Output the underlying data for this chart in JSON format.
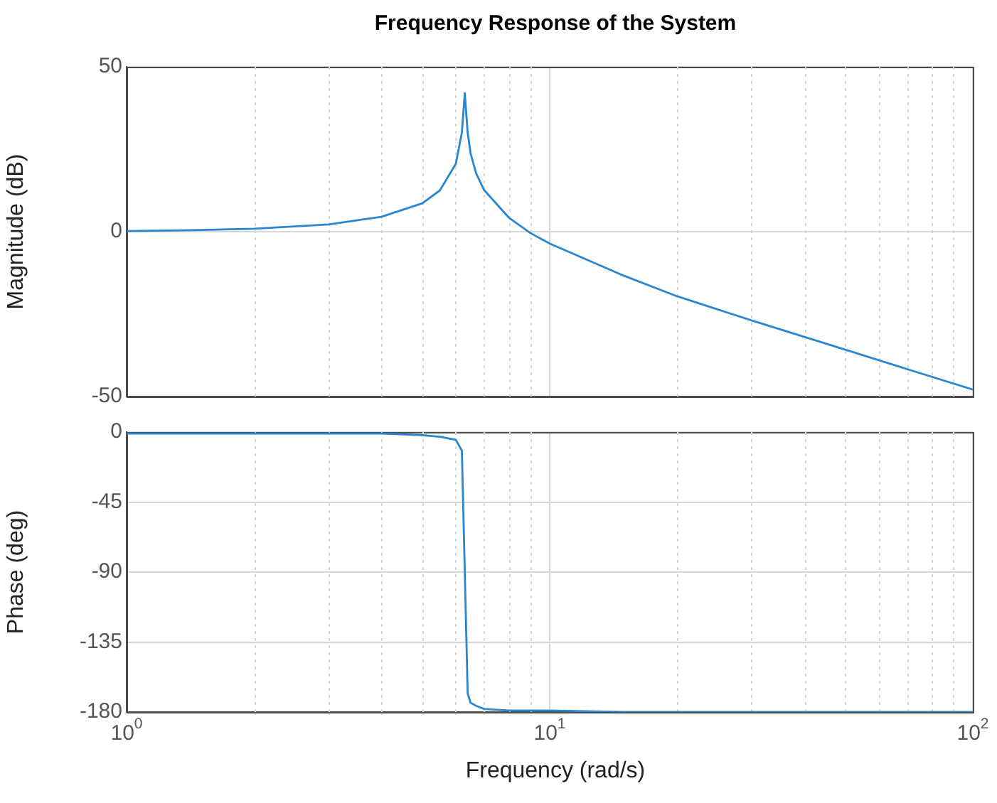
{
  "chart_data": [
    {
      "type": "line",
      "title": "Frequency Response of the System",
      "ylabel": "Magnitude (dB)",
      "log": "x",
      "grid": true,
      "tick_labels": "y",
      "marker": "none",
      "line_style": "solid",
      "xlim": [
        1,
        100
      ],
      "xticks": [
        1,
        10,
        100
      ],
      "ylim": [
        -50,
        50
      ],
      "yticks": [
        -50,
        0,
        50
      ],
      "x": [
        1,
        1.5,
        2,
        3,
        4,
        5,
        5.5,
        6,
        6.2,
        6.3,
        6.4,
        6.5,
        6.7,
        7,
        8,
        9,
        10,
        15,
        20,
        30,
        50,
        70,
        100
      ],
      "series": [
        {
          "color": "#2b86d1",
          "values": [
            0.2,
            0.5,
            0.9,
            2.2,
            4.5,
            8.6,
            12.5,
            20.6,
            30,
            42,
            30,
            23.8,
            17.7,
            12.6,
            4.3,
            -0.4,
            -3.6,
            -13.4,
            -19.6,
            -26.9,
            -35.8,
            -41.7,
            -47.9
          ]
        }
      ]
    },
    {
      "type": "line",
      "xlabel": "Frequency  (rad/s)",
      "ylabel": "Phase (deg)",
      "log": "x",
      "grid": true,
      "marker": "none",
      "line_style": "solid",
      "xlim": [
        1,
        100
      ],
      "xticks": [
        {
          "value": 1,
          "label": "10$^{0}$"
        },
        {
          "value": 10,
          "label": "10$^{1}$"
        },
        {
          "value": 100,
          "label": "10$^{2}$"
        }
      ],
      "ylim": [
        -180,
        0
      ],
      "yticks": [
        -180,
        -135,
        -90,
        -45,
        0
      ],
      "x": [
        1,
        1.5,
        2,
        3,
        4,
        5,
        5.5,
        6,
        6.2,
        6.3,
        6.4,
        6.5,
        6.7,
        7,
        8,
        9,
        10,
        15,
        20,
        30,
        50,
        70,
        100
      ],
      "series": [
        {
          "color": "#2b86d1",
          "values": [
            -1,
            -1,
            -1,
            -1,
            -1,
            -2,
            -3,
            -5,
            -12,
            -90,
            -168,
            -174,
            -176,
            -178,
            -179,
            -179,
            -179,
            -180,
            -180,
            -180,
            -180,
            -180,
            -180
          ]
        }
      ]
    }
  ]
}
